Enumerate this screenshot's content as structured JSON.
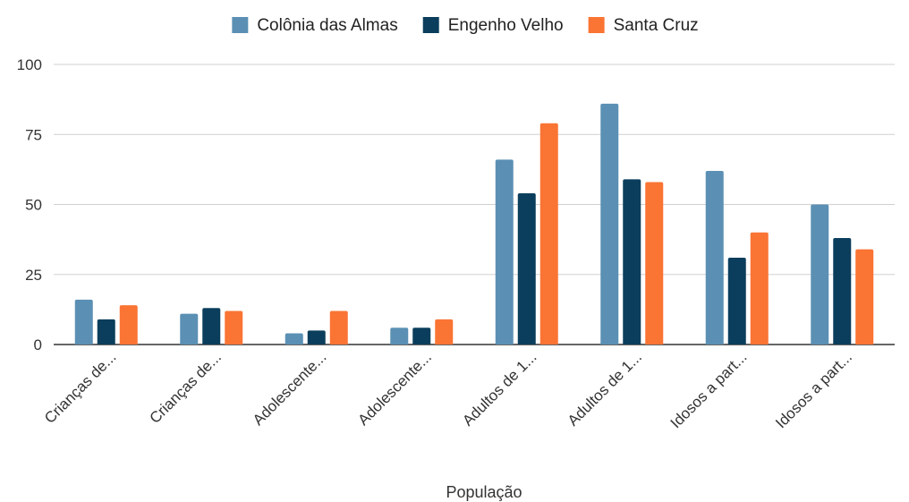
{
  "chart_data": {
    "type": "bar",
    "title": "",
    "xlabel": "População",
    "ylabel": "",
    "ylim": [
      0,
      100
    ],
    "yticks": [
      0,
      25,
      50,
      75,
      100
    ],
    "grid": true,
    "legend_position": "top",
    "categories": [
      "Crianças de...",
      "Crianças de...",
      "Adolescente...",
      "Adolescente...",
      "Adultos de 1...",
      "Adultos de 1...",
      "Idosos a part...",
      "Idosos a part..."
    ],
    "series": [
      {
        "name": "Colônia das Almas",
        "color": "#5b90b4",
        "values": [
          16,
          11,
          4,
          6,
          66,
          86,
          62,
          50
        ]
      },
      {
        "name": "Engenho Velho",
        "color": "#0b3e5c",
        "values": [
          9,
          13,
          5,
          6,
          54,
          59,
          31,
          38
        ]
      },
      {
        "name": "Santa Cruz",
        "color": "#fa7434",
        "values": [
          14,
          12,
          12,
          9,
          79,
          58,
          40,
          34
        ]
      }
    ]
  }
}
